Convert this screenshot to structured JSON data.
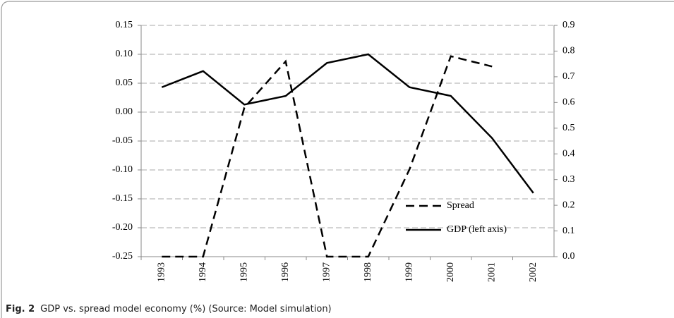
{
  "chart_data": {
    "type": "line",
    "categories": [
      "1993",
      "1994",
      "1995",
      "1996",
      "1997",
      "1998",
      "1999",
      "2000",
      "2001",
      "2002"
    ],
    "series": [
      {
        "name": "Spread",
        "color": "#000000",
        "style": "dashed",
        "axis": "y2",
        "values": [
          0,
          0,
          0.58,
          0.76,
          0,
          0,
          0.34,
          0.78,
          0.74,
          null
        ]
      },
      {
        "name": "GDP (left axis)",
        "color": "#000000",
        "style": "solid",
        "values": [
          0.043,
          0.071,
          0.013,
          0.028,
          0.085,
          0.1,
          0.043,
          0.028,
          -0.045,
          -0.14
        ]
      }
    ],
    "ylim": [
      -0.25,
      0.15
    ],
    "yticks": [
      -0.25,
      {
        "value": -0.2,
        "label": "-0.20"
      },
      -0.15,
      {
        "value": -0.1,
        "label": "-0.10"
      },
      -0.05,
      {
        "value": 0,
        "label": "0.00"
      },
      0.05,
      {
        "value": 0.1,
        "label": "0.10"
      },
      0.15
    ],
    "y2lim": [
      0,
      0.9
    ],
    "y2ticks": [
      {
        "value": 0,
        "label": "0.0"
      },
      0.1,
      0.2,
      0.3,
      0.4,
      0.5,
      0.6,
      0.7,
      0.8,
      0.9
    ],
    "grid": true,
    "legend": "lower right"
  },
  "caption_label": "Fig. 2",
  "caption": "GDP vs. spread model economy (%) (Source: Model simulation)"
}
